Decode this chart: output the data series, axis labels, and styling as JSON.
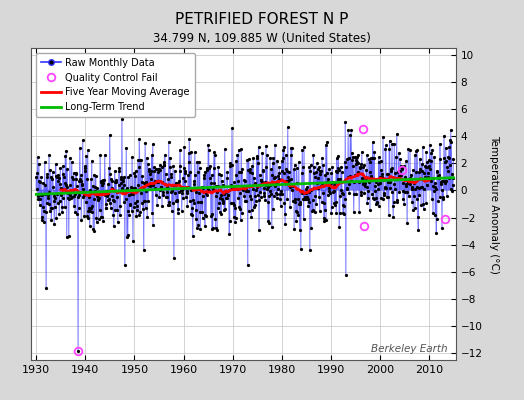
{
  "title": "PETRIFIED FOREST N P",
  "subtitle": "34.799 N, 109.885 W (United States)",
  "ylabel": "Temperature Anomaly (°C)",
  "watermark": "Berkeley Earth",
  "xlim": [
    1929,
    2015.5
  ],
  "ylim": [
    -12.5,
    10.5
  ],
  "yticks": [
    -12,
    -10,
    -8,
    -6,
    -4,
    -2,
    0,
    2,
    4,
    6,
    8,
    10
  ],
  "xticks": [
    1930,
    1940,
    1950,
    1960,
    1970,
    1980,
    1990,
    2000,
    2010
  ],
  "fig_bg_color": "#d8d8d8",
  "plot_bg_color": "#ffffff",
  "raw_color": "#3333ff",
  "raw_marker_color": "#000000",
  "qc_fail_color": "#ff44ff",
  "moving_avg_color": "#ff0000",
  "trend_color": "#00bb00",
  "seed": 42,
  "n_points": 1020,
  "start_year": 1930.0,
  "qc_times": [
    1938.5,
    1996.5,
    1996.8,
    2004.5,
    2013.2
  ],
  "qc_vals": [
    -11.8,
    4.5,
    -2.6,
    1.5,
    -2.1
  ]
}
